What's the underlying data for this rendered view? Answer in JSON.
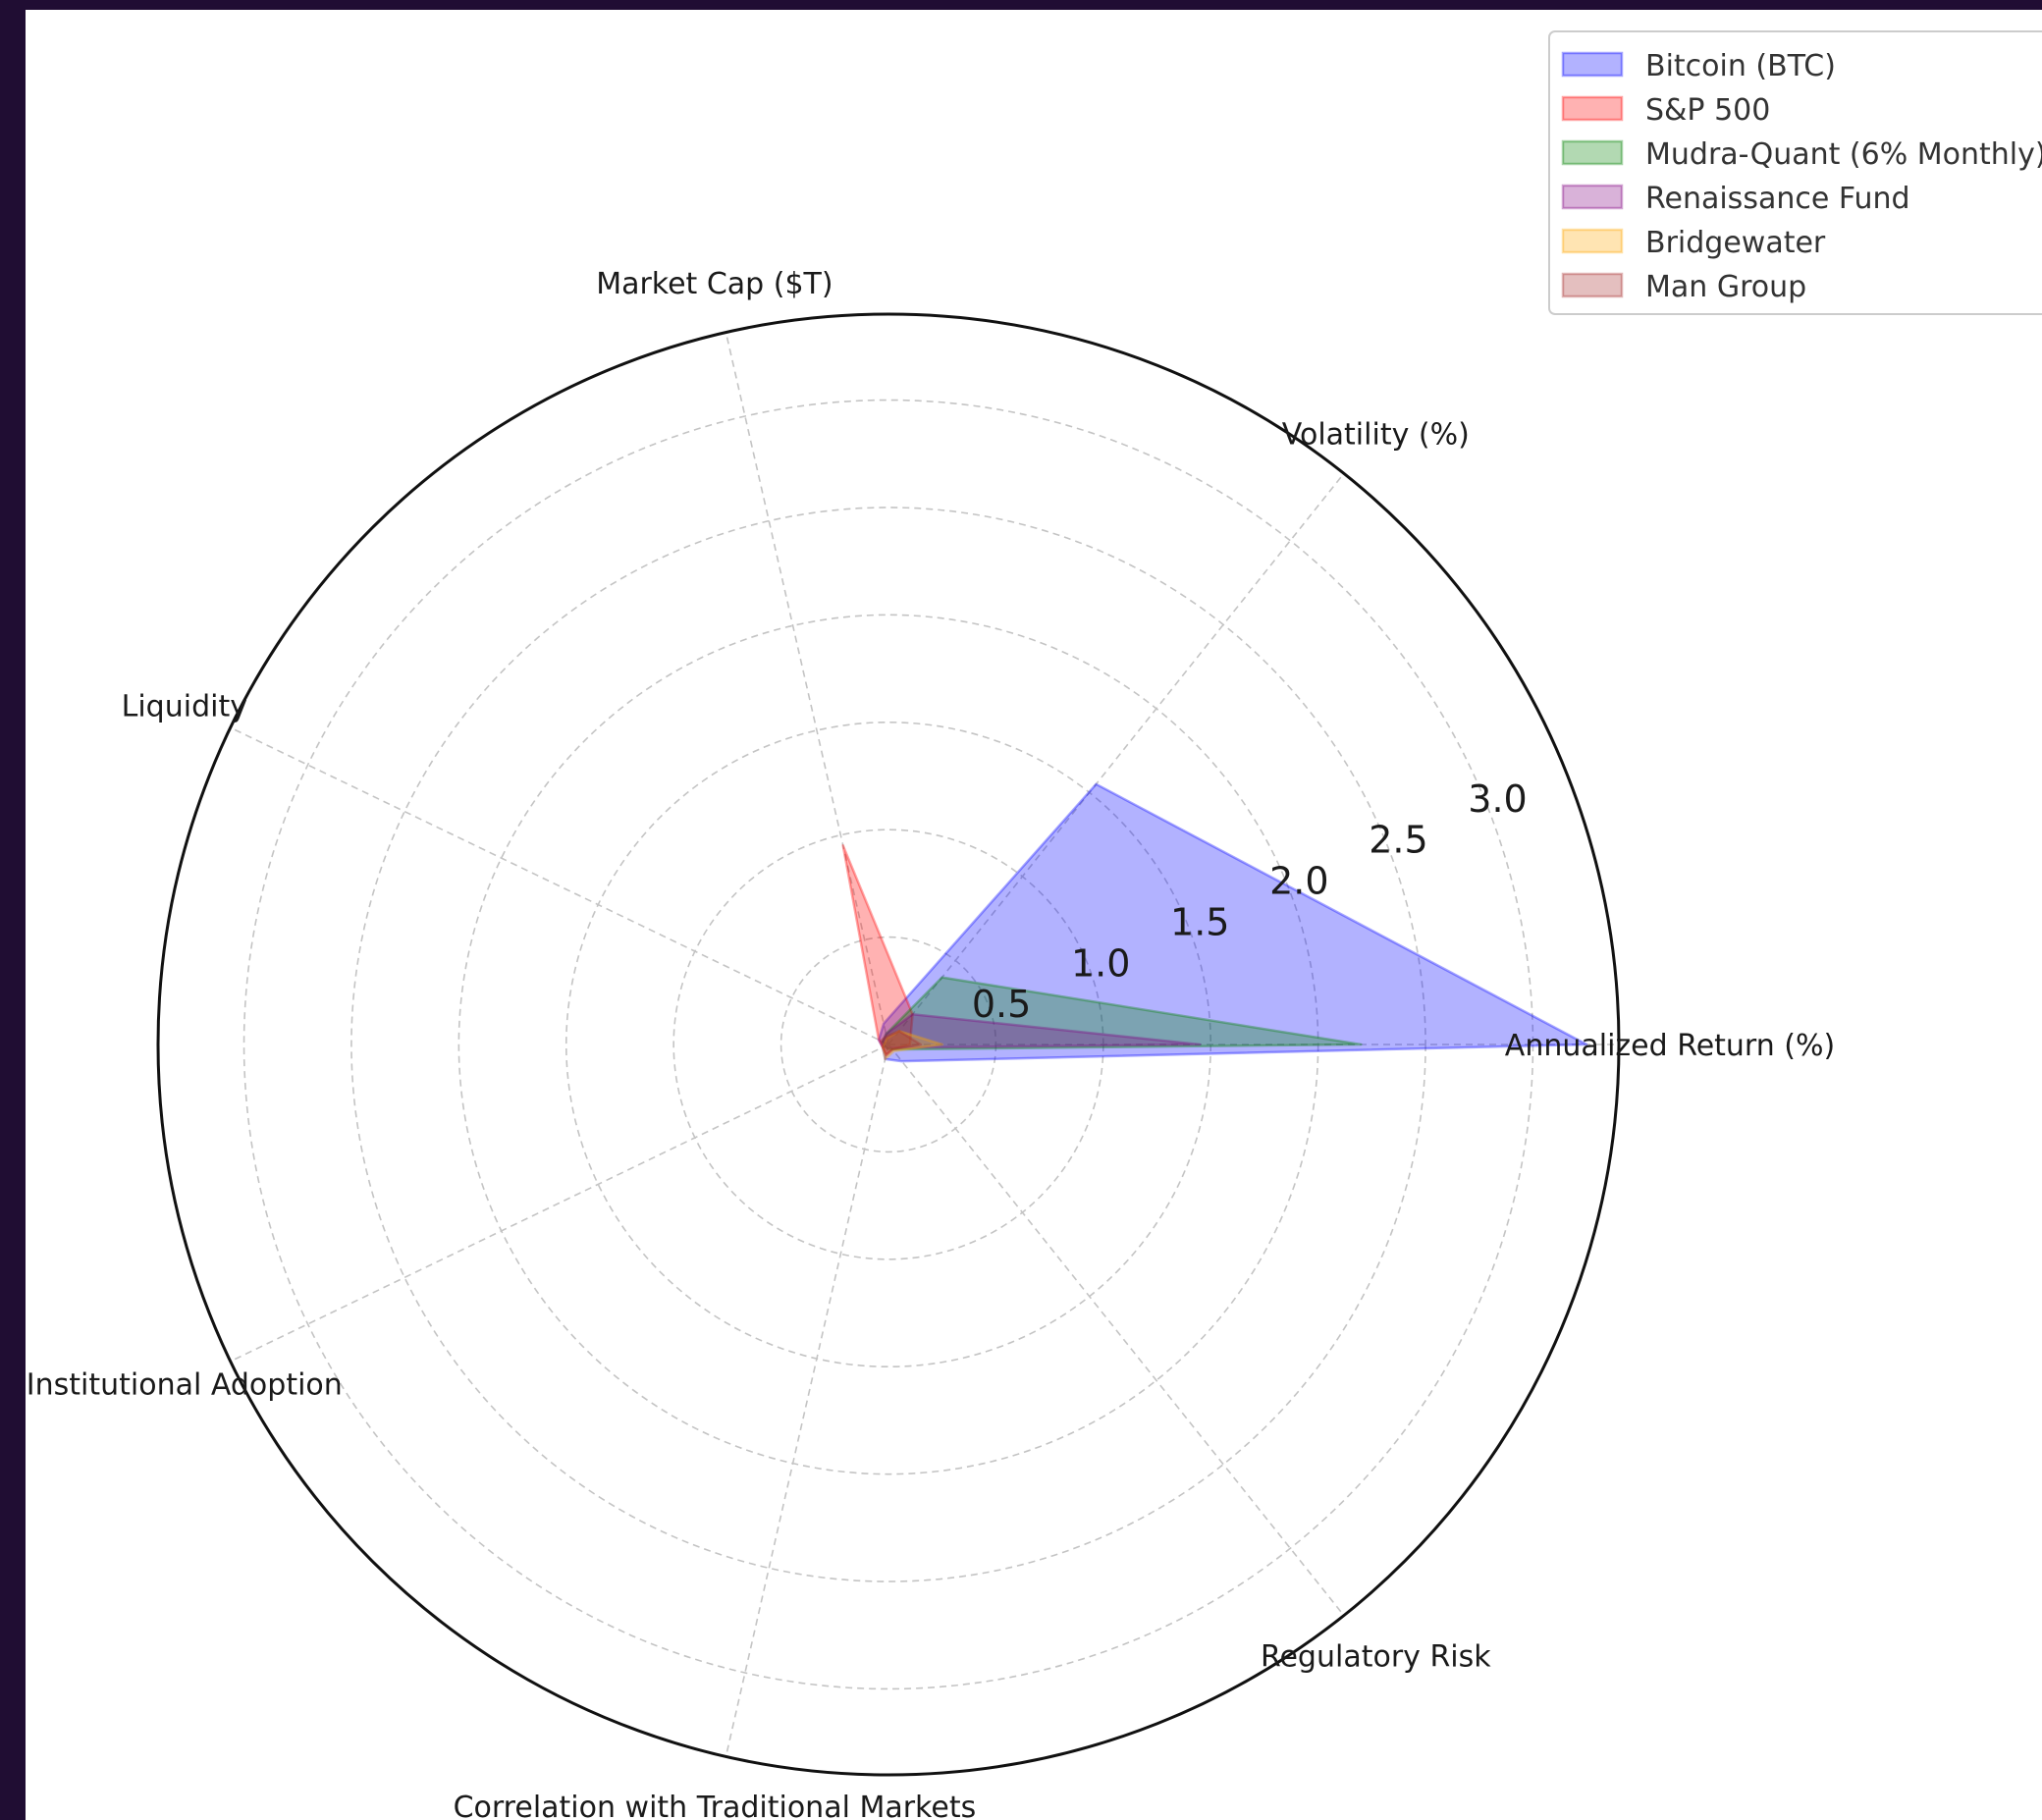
{
  "chart_data": {
    "type": "radar",
    "axes": [
      "Annualized Return (%)",
      "Volatility (%)",
      "Market Cap ($T)",
      "Liquidity",
      "Institutional Adoption",
      "Correlation with Traditional Markets",
      "Regulatory Risk"
    ],
    "radial_ticks": [
      "0.5",
      "1.0",
      "1.5",
      "2.0",
      "2.5",
      "3.0"
    ],
    "radial_tick_values": [
      0.5,
      1.0,
      1.5,
      2.0,
      2.5,
      3.0
    ],
    "rlim": [
      0,
      3.4
    ],
    "grid": true,
    "legend_position": "top-right",
    "series": [
      {
        "name": "Bitcoin (BTC)",
        "color": "#0000ff",
        "values": [
          3.25,
          1.55,
          0.1,
          0.05,
          0.03,
          0.07,
          0.1
        ]
      },
      {
        "name": "S&P 500",
        "color": "#ff0000",
        "values": [
          0.1,
          0.18,
          0.95,
          0.05,
          0.03,
          0.05,
          0.03
        ]
      },
      {
        "name": "Mudra-Quant (6% Monthly)",
        "color": "#008000",
        "values": [
          2.2,
          0.4,
          0.05,
          0.03,
          0.02,
          0.02,
          0.03
        ]
      },
      {
        "name": "Renaissance Fund",
        "color": "#800080",
        "values": [
          1.45,
          0.18,
          0.05,
          0.03,
          0.02,
          0.02,
          0.02
        ]
      },
      {
        "name": "Bridgewater",
        "color": "#ffa500",
        "values": [
          0.25,
          0.08,
          0.03,
          0.02,
          0.03,
          0.07,
          0.04
        ]
      },
      {
        "name": "Man Group",
        "color": "#a52a2a",
        "values": [
          0.15,
          0.08,
          0.04,
          0.04,
          0.03,
          0.05,
          0.03
        ]
      }
    ]
  }
}
